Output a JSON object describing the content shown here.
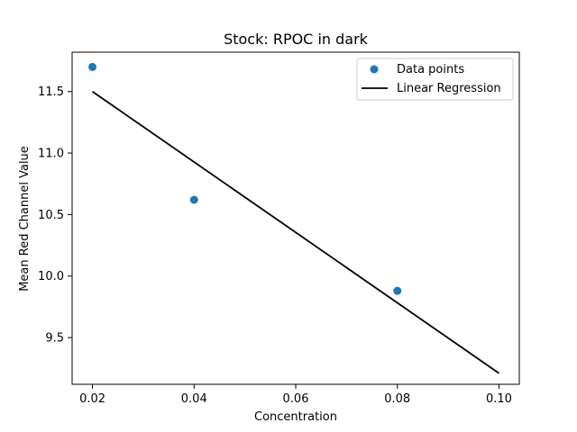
{
  "chart_data": {
    "type": "scatter",
    "title": "Stock: RPOC in dark",
    "xlabel": "Concentration",
    "ylabel": "Mean Red Channel Value",
    "xlim": [
      0.016,
      0.104
    ],
    "ylim": [
      9.12,
      11.82
    ],
    "xticks": [
      0.02,
      0.04,
      0.06,
      0.08,
      0.1
    ],
    "xtick_labels": [
      "0.02",
      "0.04",
      "0.06",
      "0.08",
      "0.10"
    ],
    "yticks": [
      9.5,
      10.0,
      10.5,
      11.0,
      11.5
    ],
    "ytick_labels": [
      "9.5",
      "10.0",
      "10.5",
      "11.0",
      "11.5"
    ],
    "grid": false,
    "legend_position": "top-right",
    "series": [
      {
        "name": "Data points",
        "kind": "scatter",
        "color": "#1f77b4",
        "x": [
          0.02,
          0.04,
          0.08
        ],
        "y": [
          11.7,
          10.62,
          9.88
        ]
      },
      {
        "name": "Linear Regression",
        "kind": "line",
        "color": "#000000",
        "x": [
          0.02,
          0.1
        ],
        "y": [
          11.5,
          9.21
        ]
      }
    ]
  }
}
